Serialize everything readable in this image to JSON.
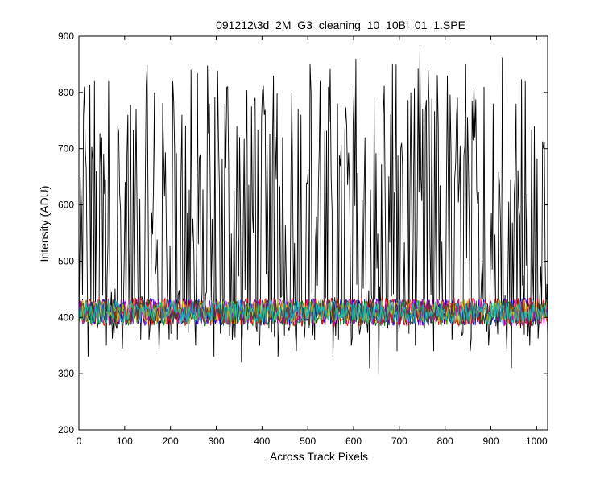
{
  "window": {
    "title": "091212\\3d_2M_G3_cleaning_10_10Bl_01_1.SPE"
  },
  "chart_data": {
    "type": "line",
    "title": "091212\\3d_2M_G3_cleaning_10_10Bl_01_1.SPE",
    "xlabel": "Across Track Pixels",
    "ylabel": "Intensity (ADU)",
    "xlim": [
      0,
      1024
    ],
    "ylim": [
      200,
      900
    ],
    "xticks": [
      0,
      100,
      200,
      300,
      400,
      500,
      600,
      700,
      800,
      900,
      1000
    ],
    "yticks": [
      200,
      300,
      400,
      500,
      600,
      700,
      800,
      900
    ],
    "grid": false,
    "legend": "none",
    "series": [
      {
        "color": "#000000",
        "description": "noisy high-variance trace",
        "baseline": 400,
        "range": [
          298,
          876
        ],
        "points": [
          [
            0,
            390
          ],
          [
            10,
            760
          ],
          [
            20,
            330
          ],
          [
            30,
            680
          ],
          [
            40,
            380
          ],
          [
            50,
            720
          ],
          [
            60,
            350
          ],
          [
            65,
            820
          ],
          [
            75,
            390
          ],
          [
            85,
            740
          ],
          [
            95,
            345
          ],
          [
            105,
            690
          ],
          [
            115,
            400
          ],
          [
            125,
            770
          ],
          [
            135,
            360
          ],
          [
            145,
            640
          ],
          [
            155,
            380
          ],
          [
            165,
            800
          ],
          [
            175,
            340
          ],
          [
            185,
            700
          ],
          [
            195,
            410
          ],
          [
            205,
            820
          ],
          [
            215,
            360
          ],
          [
            225,
            760
          ],
          [
            235,
            390
          ],
          [
            245,
            840
          ],
          [
            255,
            350
          ],
          [
            265,
            690
          ],
          [
            275,
            400
          ],
          [
            285,
            780
          ],
          [
            295,
            330
          ],
          [
            305,
            720
          ],
          [
            315,
            390
          ],
          [
            325,
            810
          ],
          [
            335,
            360
          ],
          [
            345,
            740
          ],
          [
            355,
            320
          ],
          [
            365,
            700
          ],
          [
            375,
            400
          ],
          [
            385,
            790
          ],
          [
            395,
            350
          ],
          [
            405,
            760
          ],
          [
            415,
            380
          ],
          [
            425,
            830
          ],
          [
            435,
            330
          ],
          [
            445,
            720
          ],
          [
            455,
            390
          ],
          [
            465,
            800
          ],
          [
            475,
            340
          ],
          [
            485,
            760
          ],
          [
            495,
            400
          ],
          [
            505,
            850
          ],
          [
            515,
            360
          ],
          [
            525,
            700
          ],
          [
            535,
            390
          ],
          [
            545,
            810
          ],
          [
            555,
            330
          ],
          [
            565,
            780
          ],
          [
            575,
            400
          ],
          [
            585,
            740
          ],
          [
            595,
            350
          ],
          [
            605,
            860
          ],
          [
            615,
            380
          ],
          [
            625,
            720
          ],
          [
            635,
            310
          ],
          [
            645,
            790
          ],
          [
            655,
            300
          ],
          [
            665,
            760
          ],
          [
            675,
            380
          ],
          [
            685,
            850
          ],
          [
            695,
            340
          ],
          [
            705,
            710
          ],
          [
            715,
            390
          ],
          [
            725,
            800
          ],
          [
            735,
            350
          ],
          [
            745,
            875
          ],
          [
            755,
            380
          ],
          [
            765,
            780
          ],
          [
            775,
            340
          ],
          [
            785,
            740
          ],
          [
            795,
            400
          ],
          [
            805,
            830
          ],
          [
            815,
            360
          ],
          [
            825,
            760
          ],
          [
            835,
            380
          ],
          [
            845,
            850
          ],
          [
            855,
            340
          ],
          [
            865,
            720
          ],
          [
            875,
            390
          ],
          [
            885,
            810
          ],
          [
            895,
            350
          ],
          [
            905,
            780
          ],
          [
            915,
            370
          ],
          [
            925,
            862
          ],
          [
            935,
            340
          ],
          [
            945,
            310
          ],
          [
            955,
            780
          ],
          [
            965,
            380
          ],
          [
            975,
            820
          ],
          [
            985,
            350
          ],
          [
            995,
            740
          ],
          [
            1005,
            390
          ],
          [
            1015,
            700
          ],
          [
            1024,
            360
          ]
        ]
      },
      {
        "color": "#0000ff",
        "description": "low-variance trace",
        "baseline": 410,
        "range": [
          380,
          445
        ]
      },
      {
        "color": "#008000",
        "description": "low-variance trace",
        "baseline": 408,
        "range": [
          378,
          440
        ]
      },
      {
        "color": "#ff0000",
        "description": "low-variance trace",
        "baseline": 410,
        "range": [
          380,
          448
        ]
      },
      {
        "color": "#bf00bf",
        "description": "low-variance trace",
        "baseline": 409,
        "range": [
          378,
          442
        ]
      },
      {
        "color": "#bfbf00",
        "description": "low-variance trace",
        "baseline": 410,
        "range": [
          382,
          440
        ]
      },
      {
        "color": "#404040",
        "description": "low-variance trace",
        "baseline": 409,
        "range": [
          380,
          442
        ]
      },
      {
        "color": "#00bfbf",
        "description": "low-variance trace",
        "baseline": 410,
        "range": [
          385,
          440
        ]
      }
    ]
  }
}
